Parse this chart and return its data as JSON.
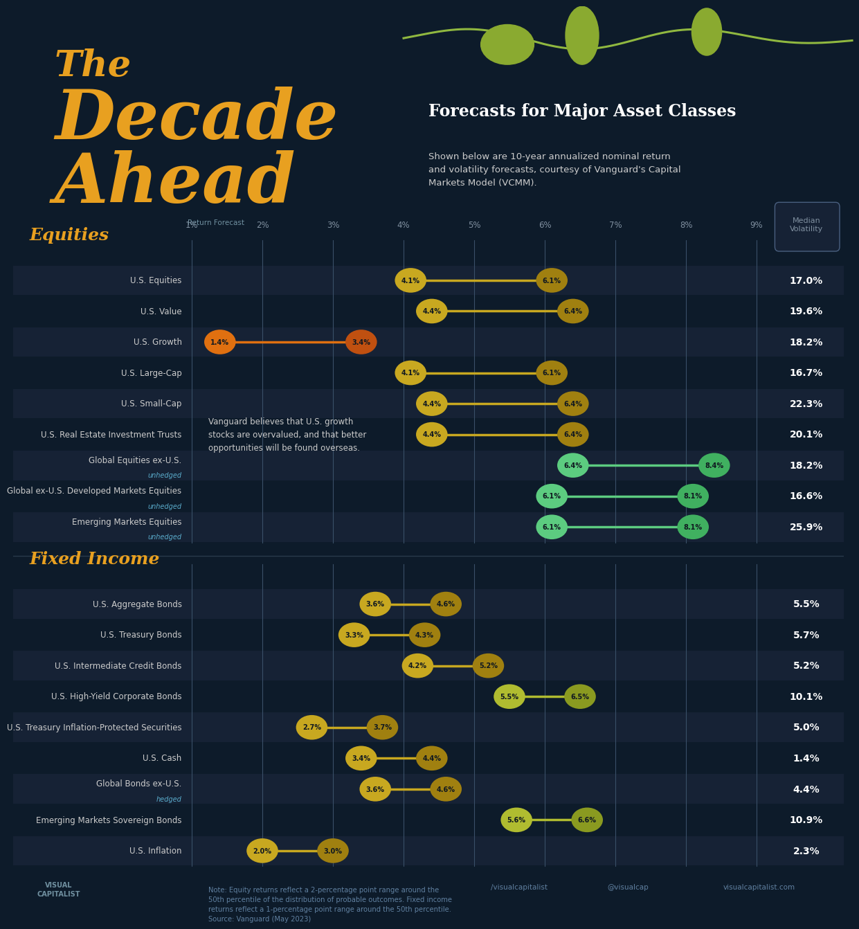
{
  "bg_color": "#0d1b2a",
  "row_alt_color": "#162235",
  "row_base_color": "#0d1b2a",
  "title_color": "#e8a020",
  "subtitle_color": "#ffffff",
  "description_color": "#cccccc",
  "return_forecast_label": "Return Forecast",
  "axis_ticks": [
    "1%",
    "2%",
    "3%",
    "4%",
    "5%",
    "6%",
    "7%",
    "8%",
    "9%"
  ],
  "axis_values": [
    1,
    2,
    3,
    4,
    5,
    6,
    7,
    8,
    9
  ],
  "annotation_text": "Vanguard believes that U.S. growth\nstocks are overvalued, and that better\nopportunities will be found overseas.",
  "equities": [
    {
      "name": "U.S. Equities",
      "low": 4.1,
      "high": 6.1,
      "volatility": "17.0%",
      "color_type": "yellow_green",
      "sublabel": null
    },
    {
      "name": "U.S. Value",
      "low": 4.4,
      "high": 6.4,
      "volatility": "19.6%",
      "color_type": "yellow_green",
      "sublabel": null
    },
    {
      "name": "U.S. Growth",
      "low": 1.4,
      "high": 3.4,
      "volatility": "18.2%",
      "color_type": "orange",
      "sublabel": null
    },
    {
      "name": "U.S. Large-Cap",
      "low": 4.1,
      "high": 6.1,
      "volatility": "16.7%",
      "color_type": "yellow_green",
      "sublabel": null
    },
    {
      "name": "U.S. Small-Cap",
      "low": 4.4,
      "high": 6.4,
      "volatility": "22.3%",
      "color_type": "yellow_green",
      "sublabel": null
    },
    {
      "name": "U.S. Real Estate Investment Trusts",
      "low": 4.4,
      "high": 6.4,
      "volatility": "20.1%",
      "color_type": "yellow_green",
      "sublabel": null
    },
    {
      "name": "Global Equities ex-U.S.",
      "low": 6.4,
      "high": 8.4,
      "volatility": "18.2%",
      "color_type": "green",
      "sublabel": "unhedged"
    },
    {
      "name": "Global ex-U.S. Developed Markets Equities",
      "low": 6.1,
      "high": 8.1,
      "volatility": "16.6%",
      "color_type": "green",
      "sublabel": "unhedged"
    },
    {
      "name": "Emerging Markets Equities",
      "low": 6.1,
      "high": 8.1,
      "volatility": "25.9%",
      "color_type": "green",
      "sublabel": "unhedged"
    }
  ],
  "fixed_income": [
    {
      "name": "U.S. Aggregate Bonds",
      "low": 3.6,
      "high": 4.6,
      "volatility": "5.5%",
      "color_type": "yellow_green",
      "sublabel": null
    },
    {
      "name": "U.S. Treasury Bonds",
      "low": 3.3,
      "high": 4.3,
      "volatility": "5.7%",
      "color_type": "yellow_green",
      "sublabel": null
    },
    {
      "name": "U.S. Intermediate Credit Bonds",
      "low": 4.2,
      "high": 5.2,
      "volatility": "5.2%",
      "color_type": "yellow_green",
      "sublabel": null
    },
    {
      "name": "U.S. High-Yield Corporate Bonds",
      "low": 5.5,
      "high": 6.5,
      "volatility": "10.1%",
      "color_type": "yellow_green_light",
      "sublabel": null
    },
    {
      "name": "U.S. Treasury Inflation-Protected Securities",
      "low": 2.7,
      "high": 3.7,
      "volatility": "5.0%",
      "color_type": "yellow_green",
      "sublabel": null
    },
    {
      "name": "U.S. Cash",
      "low": 3.4,
      "high": 4.4,
      "volatility": "1.4%",
      "color_type": "yellow_green",
      "sublabel": null
    },
    {
      "name": "Global Bonds ex-U.S.",
      "low": 3.6,
      "high": 4.6,
      "volatility": "4.4%",
      "color_type": "yellow_green",
      "sublabel": "hedged"
    },
    {
      "name": "Emerging Markets Sovereign Bonds",
      "low": 5.6,
      "high": 6.6,
      "volatility": "10.9%",
      "color_type": "yellow_green_light",
      "sublabel": null
    },
    {
      "name": "U.S. Inflation",
      "low": 2.0,
      "high": 3.0,
      "volatility": "2.3%",
      "color_type": "yellow_green",
      "sublabel": null
    }
  ],
  "label_color": "#cccccc",
  "note_text": "Note: Equity returns reflect a 2-percentage point range around the\n50th percentile of the distribution of probable outcomes. Fixed income\nreturns reflect a 1-percentage point range around the 50th percentile.\nSource: Vanguard (May 2023)"
}
